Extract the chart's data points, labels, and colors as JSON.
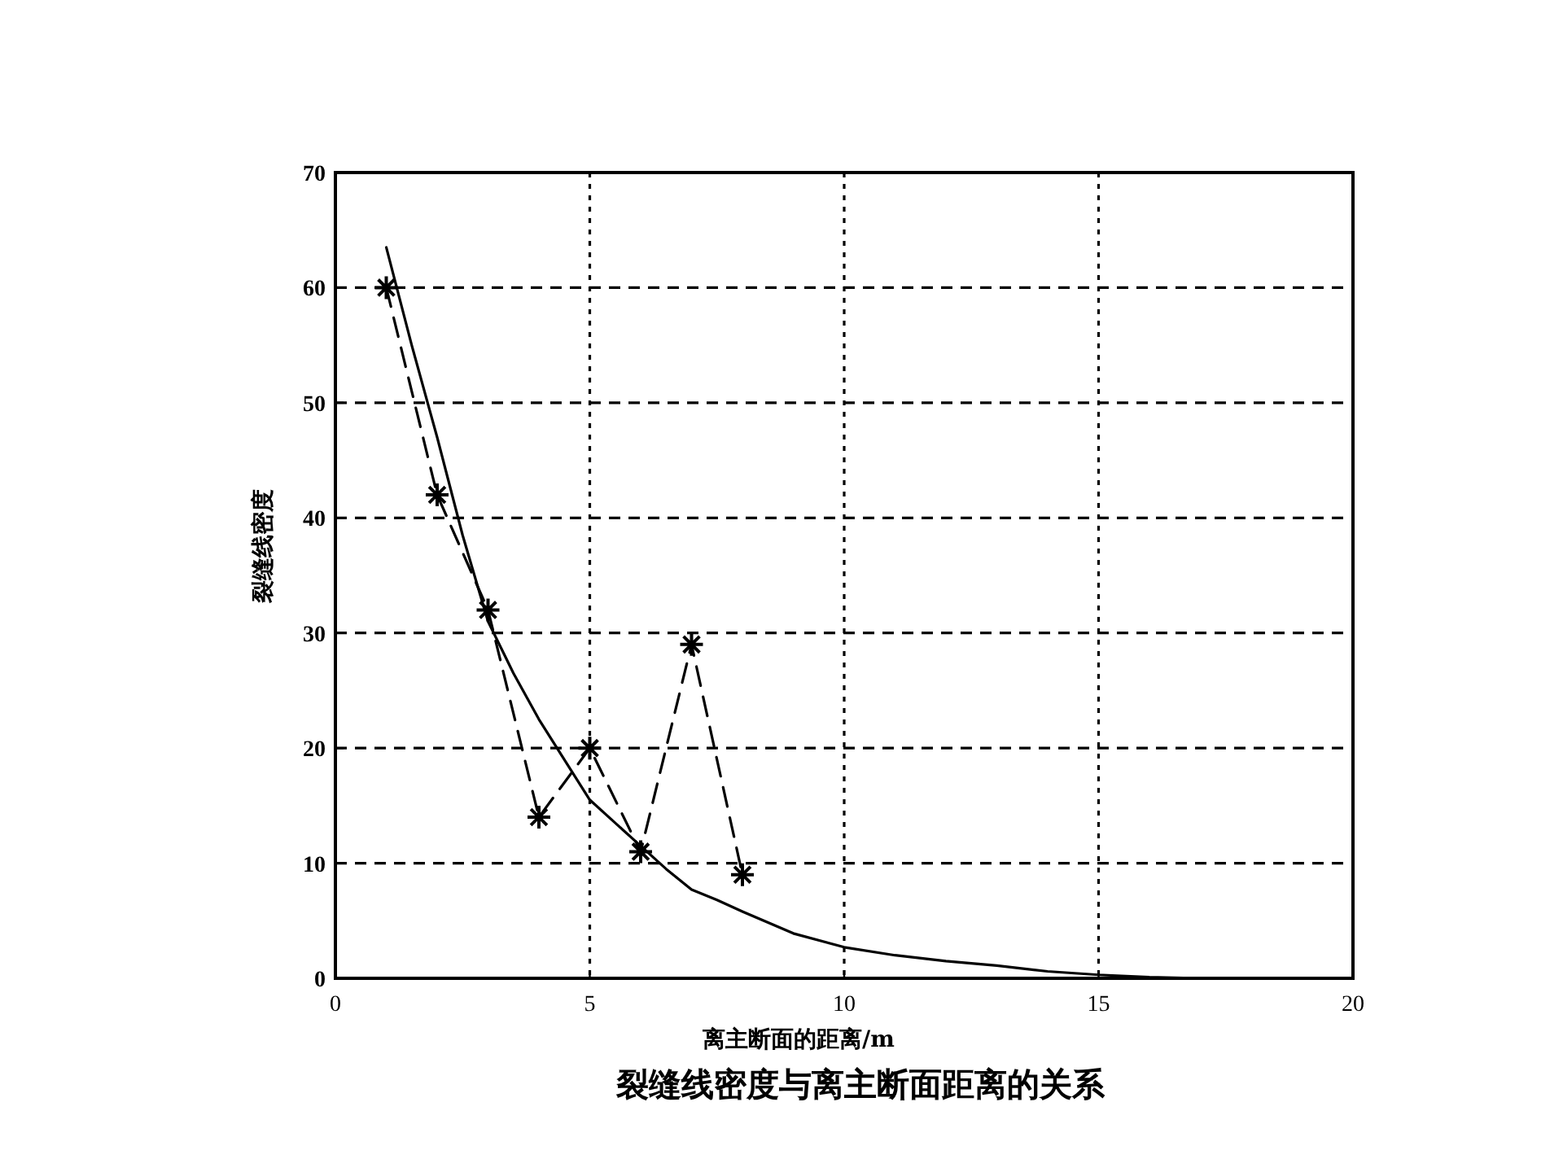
{
  "chart_data": {
    "type": "line",
    "title": "裂缝线密度与离主断面距离的关系",
    "xlabel": "离主断面的距离/m",
    "ylabel": "裂缝线密度",
    "xlim": [
      0,
      20
    ],
    "ylim": [
      0,
      70
    ],
    "xticks": [
      0,
      5,
      10,
      15,
      20
    ],
    "yticks": [
      0,
      10,
      20,
      30,
      40,
      50,
      60,
      70
    ],
    "grid": true,
    "series": [
      {
        "color": "#000000",
        "marker": "cross",
        "line_style": "dashed",
        "x": [
          1,
          2,
          3,
          4,
          5,
          6,
          7,
          8
        ],
        "values": [
          60,
          42,
          32,
          14,
          20,
          11,
          29,
          9
        ]
      },
      {
        "color": "#000000",
        "marker": "none",
        "line_style": "solid",
        "x": [
          1,
          1.5,
          2,
          2.5,
          3,
          3.5,
          4,
          4.5,
          5,
          5.5,
          6,
          6.5,
          7,
          7.5,
          8,
          9,
          10,
          11,
          12,
          13,
          14,
          15,
          16,
          17,
          18,
          19
        ],
        "values": [
          63.5,
          55,
          47,
          38.5,
          31,
          26.5,
          22.5,
          19,
          15.5,
          13.5,
          11.5,
          9.5,
          7.7,
          6.8,
          5.8,
          3.9,
          2.7,
          2,
          1.5,
          1.1,
          0.6,
          0.3,
          0.1,
          0,
          0,
          0
        ]
      }
    ]
  }
}
